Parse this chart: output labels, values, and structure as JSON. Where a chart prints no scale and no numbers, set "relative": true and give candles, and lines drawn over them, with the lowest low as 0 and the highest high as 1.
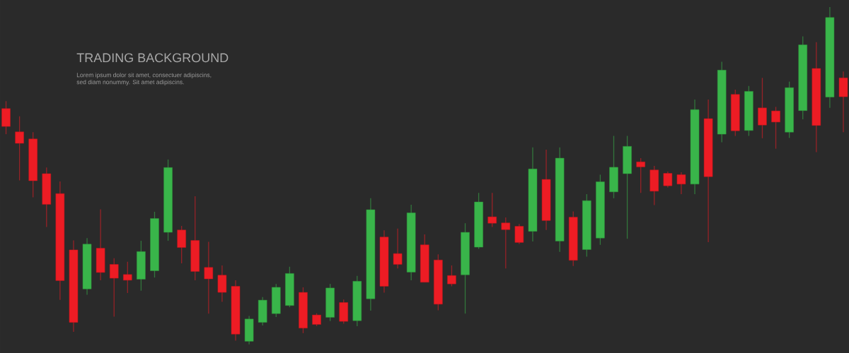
{
  "chart_data": {
    "type": "candlestick",
    "title": "TRADING BACKGROUND",
    "subtitle": "Lorem ipsum dolor sit amet, consectuer adipiscins, sed diam nonummy. Sit amet adipiscins.",
    "relative": true,
    "categories": [
      null,
      null,
      null,
      null,
      null,
      null,
      null,
      null,
      null,
      null,
      null,
      null,
      null,
      null,
      null,
      null,
      null,
      null,
      null,
      null,
      null,
      null,
      null,
      null,
      null,
      null,
      null,
      null,
      null,
      null,
      null,
      null,
      null,
      null,
      null,
      null,
      null,
      null,
      null,
      null,
      null,
      null,
      null,
      null,
      null,
      null,
      null,
      null,
      null,
      null,
      null,
      null,
      null,
      null,
      null,
      null,
      null,
      null,
      null,
      null,
      null,
      null,
      null
    ],
    "ohlc": [
      [
        0.699,
        0.721,
        0.623,
        0.646
      ],
      [
        0.63,
        0.676,
        0.486,
        0.596
      ],
      [
        0.609,
        0.629,
        0.436,
        0.485
      ],
      [
        0.506,
        0.524,
        0.348,
        0.415
      ],
      [
        0.447,
        0.483,
        0.132,
        0.189
      ],
      [
        0.28,
        0.308,
        0.037,
        0.065
      ],
      [
        0.164,
        0.315,
        0.147,
        0.297
      ],
      [
        0.285,
        0.4,
        0.19,
        0.213
      ],
      [
        0.237,
        0.255,
        0.082,
        0.196
      ],
      [
        0.207,
        0.245,
        0.152,
        0.19
      ],
      [
        0.193,
        0.307,
        0.159,
        0.275
      ],
      [
        0.218,
        0.393,
        0.198,
        0.373
      ],
      [
        0.332,
        0.548,
        0.307,
        0.524
      ],
      [
        0.339,
        0.351,
        0.24,
        0.287
      ],
      [
        0.308,
        0.439,
        0.19,
        0.216
      ],
      [
        0.228,
        0.304,
        0.091,
        0.194
      ],
      [
        0.205,
        0.234,
        0.126,
        0.154
      ],
      [
        0.172,
        0.19,
        0.011,
        0.03
      ],
      [
        0.009,
        0.084,
        0,
        0.075
      ],
      [
        0.065,
        0.14,
        0.056,
        0.131
      ],
      [
        0.091,
        0.179,
        0.081,
        0.169
      ],
      [
        0.115,
        0.23,
        0.11,
        0.21
      ],
      [
        0.154,
        0.169,
        0.033,
        0.048
      ],
      [
        0.087,
        0.092,
        0.054,
        0.059
      ],
      [
        0.08,
        0.179,
        0.069,
        0.167
      ],
      [
        0.124,
        0.133,
        0.061,
        0.068
      ],
      [
        0.07,
        0.203,
        0.054,
        0.187
      ],
      [
        0.135,
        0.433,
        0.1,
        0.399
      ],
      [
        0.318,
        0.338,
        0.153,
        0.172
      ],
      [
        0.269,
        0.343,
        0.225,
        0.237
      ],
      [
        0.214,
        0.414,
        0.19,
        0.39
      ],
      [
        0.295,
        0.326,
        0.184,
        0.184
      ],
      [
        0.25,
        0.267,
        0.101,
        0.119
      ],
      [
        0.204,
        0.234,
        0.172,
        0.179
      ],
      [
        0.206,
        0.359,
        0.091,
        0.332
      ],
      [
        0.288,
        0.449,
        0.283,
        0.422
      ],
      [
        0.378,
        0.449,
        0.348,
        0.359
      ],
      [
        0.36,
        0.376,
        0.225,
        0.34
      ],
      [
        0.35,
        0.357,
        0.297,
        0.302
      ],
      [
        0.335,
        0.584,
        0.305,
        0.52
      ],
      [
        0.489,
        0.577,
        0.339,
        0.367
      ],
      [
        0.306,
        0.584,
        0.274,
        0.552
      ],
      [
        0.377,
        0.394,
        0.232,
        0.249
      ],
      [
        0.281,
        0.445,
        0.26,
        0.426
      ],
      [
        0.315,
        0.503,
        0.295,
        0.482
      ],
      [
        0.452,
        0.618,
        0.433,
        0.525
      ],
      [
        0.506,
        0.618,
        0.313,
        0.587
      ],
      [
        0.541,
        0.552,
        0.449,
        0.526
      ],
      [
        0.517,
        0.529,
        0.413,
        0.454
      ],
      [
        0.507,
        0.512,
        0.465,
        0.47
      ],
      [
        0.503,
        0.51,
        0.445,
        0.475
      ],
      [
        0.475,
        0.726,
        0.445,
        0.696
      ],
      [
        0.669,
        0.726,
        0.303,
        0.497
      ],
      [
        0.623,
        0.838,
        0.599,
        0.813
      ],
      [
        0.741,
        0.755,
        0.618,
        0.633
      ],
      [
        0.634,
        0.766,
        0.618,
        0.75
      ],
      [
        0.701,
        0.79,
        0.611,
        0.65
      ],
      [
        0.692,
        0.704,
        0.58,
        0.659
      ],
      [
        0.629,
        0.779,
        0.612,
        0.761
      ],
      [
        0.693,
        0.913,
        0.667,
        0.888
      ],
      [
        0.818,
        0.896,
        0.57,
        0.649
      ],
      [
        0.733,
        1,
        0.701,
        0.969
      ],
      [
        0.79,
        0.809,
        0.629,
        0.734
      ]
    ],
    "colors": [
      "#ed1c24",
      "#ed1c24",
      "#ed1c24",
      "#ed1c24",
      "#ed1c24",
      "#ed1c24",
      "#39b54a",
      "#ed1c24",
      "#ed1c24",
      "#ed1c24",
      "#39b54a",
      "#39b54a",
      "#39b54a",
      "#ed1c24",
      "#ed1c24",
      "#ed1c24",
      "#ed1c24",
      "#ed1c24",
      "#39b54a",
      "#39b54a",
      "#39b54a",
      "#39b54a",
      "#ed1c24",
      "#ed1c24",
      "#39b54a",
      "#ed1c24",
      "#39b54a",
      "#39b54a",
      "#ed1c24",
      "#ed1c24",
      "#39b54a",
      "#ed1c24",
      "#ed1c24",
      "#ed1c24",
      "#39b54a",
      "#39b54a",
      "#ed1c24",
      "#ed1c24",
      "#ed1c24",
      "#39b54a",
      "#ed1c24",
      "#39b54a",
      "#ed1c24",
      "#39b54a",
      "#39b54a",
      "#39b54a",
      "#39b54a",
      "#ed1c24",
      "#ed1c24",
      "#ed1c24",
      "#ed1c24",
      "#39b54a",
      "#ed1c24",
      "#39b54a",
      "#ed1c24",
      "#39b54a",
      "#ed1c24",
      "#ed1c24",
      "#39b54a",
      "#39b54a",
      "#ed1c24",
      "#39b54a",
      "#ed1c24"
    ]
  }
}
